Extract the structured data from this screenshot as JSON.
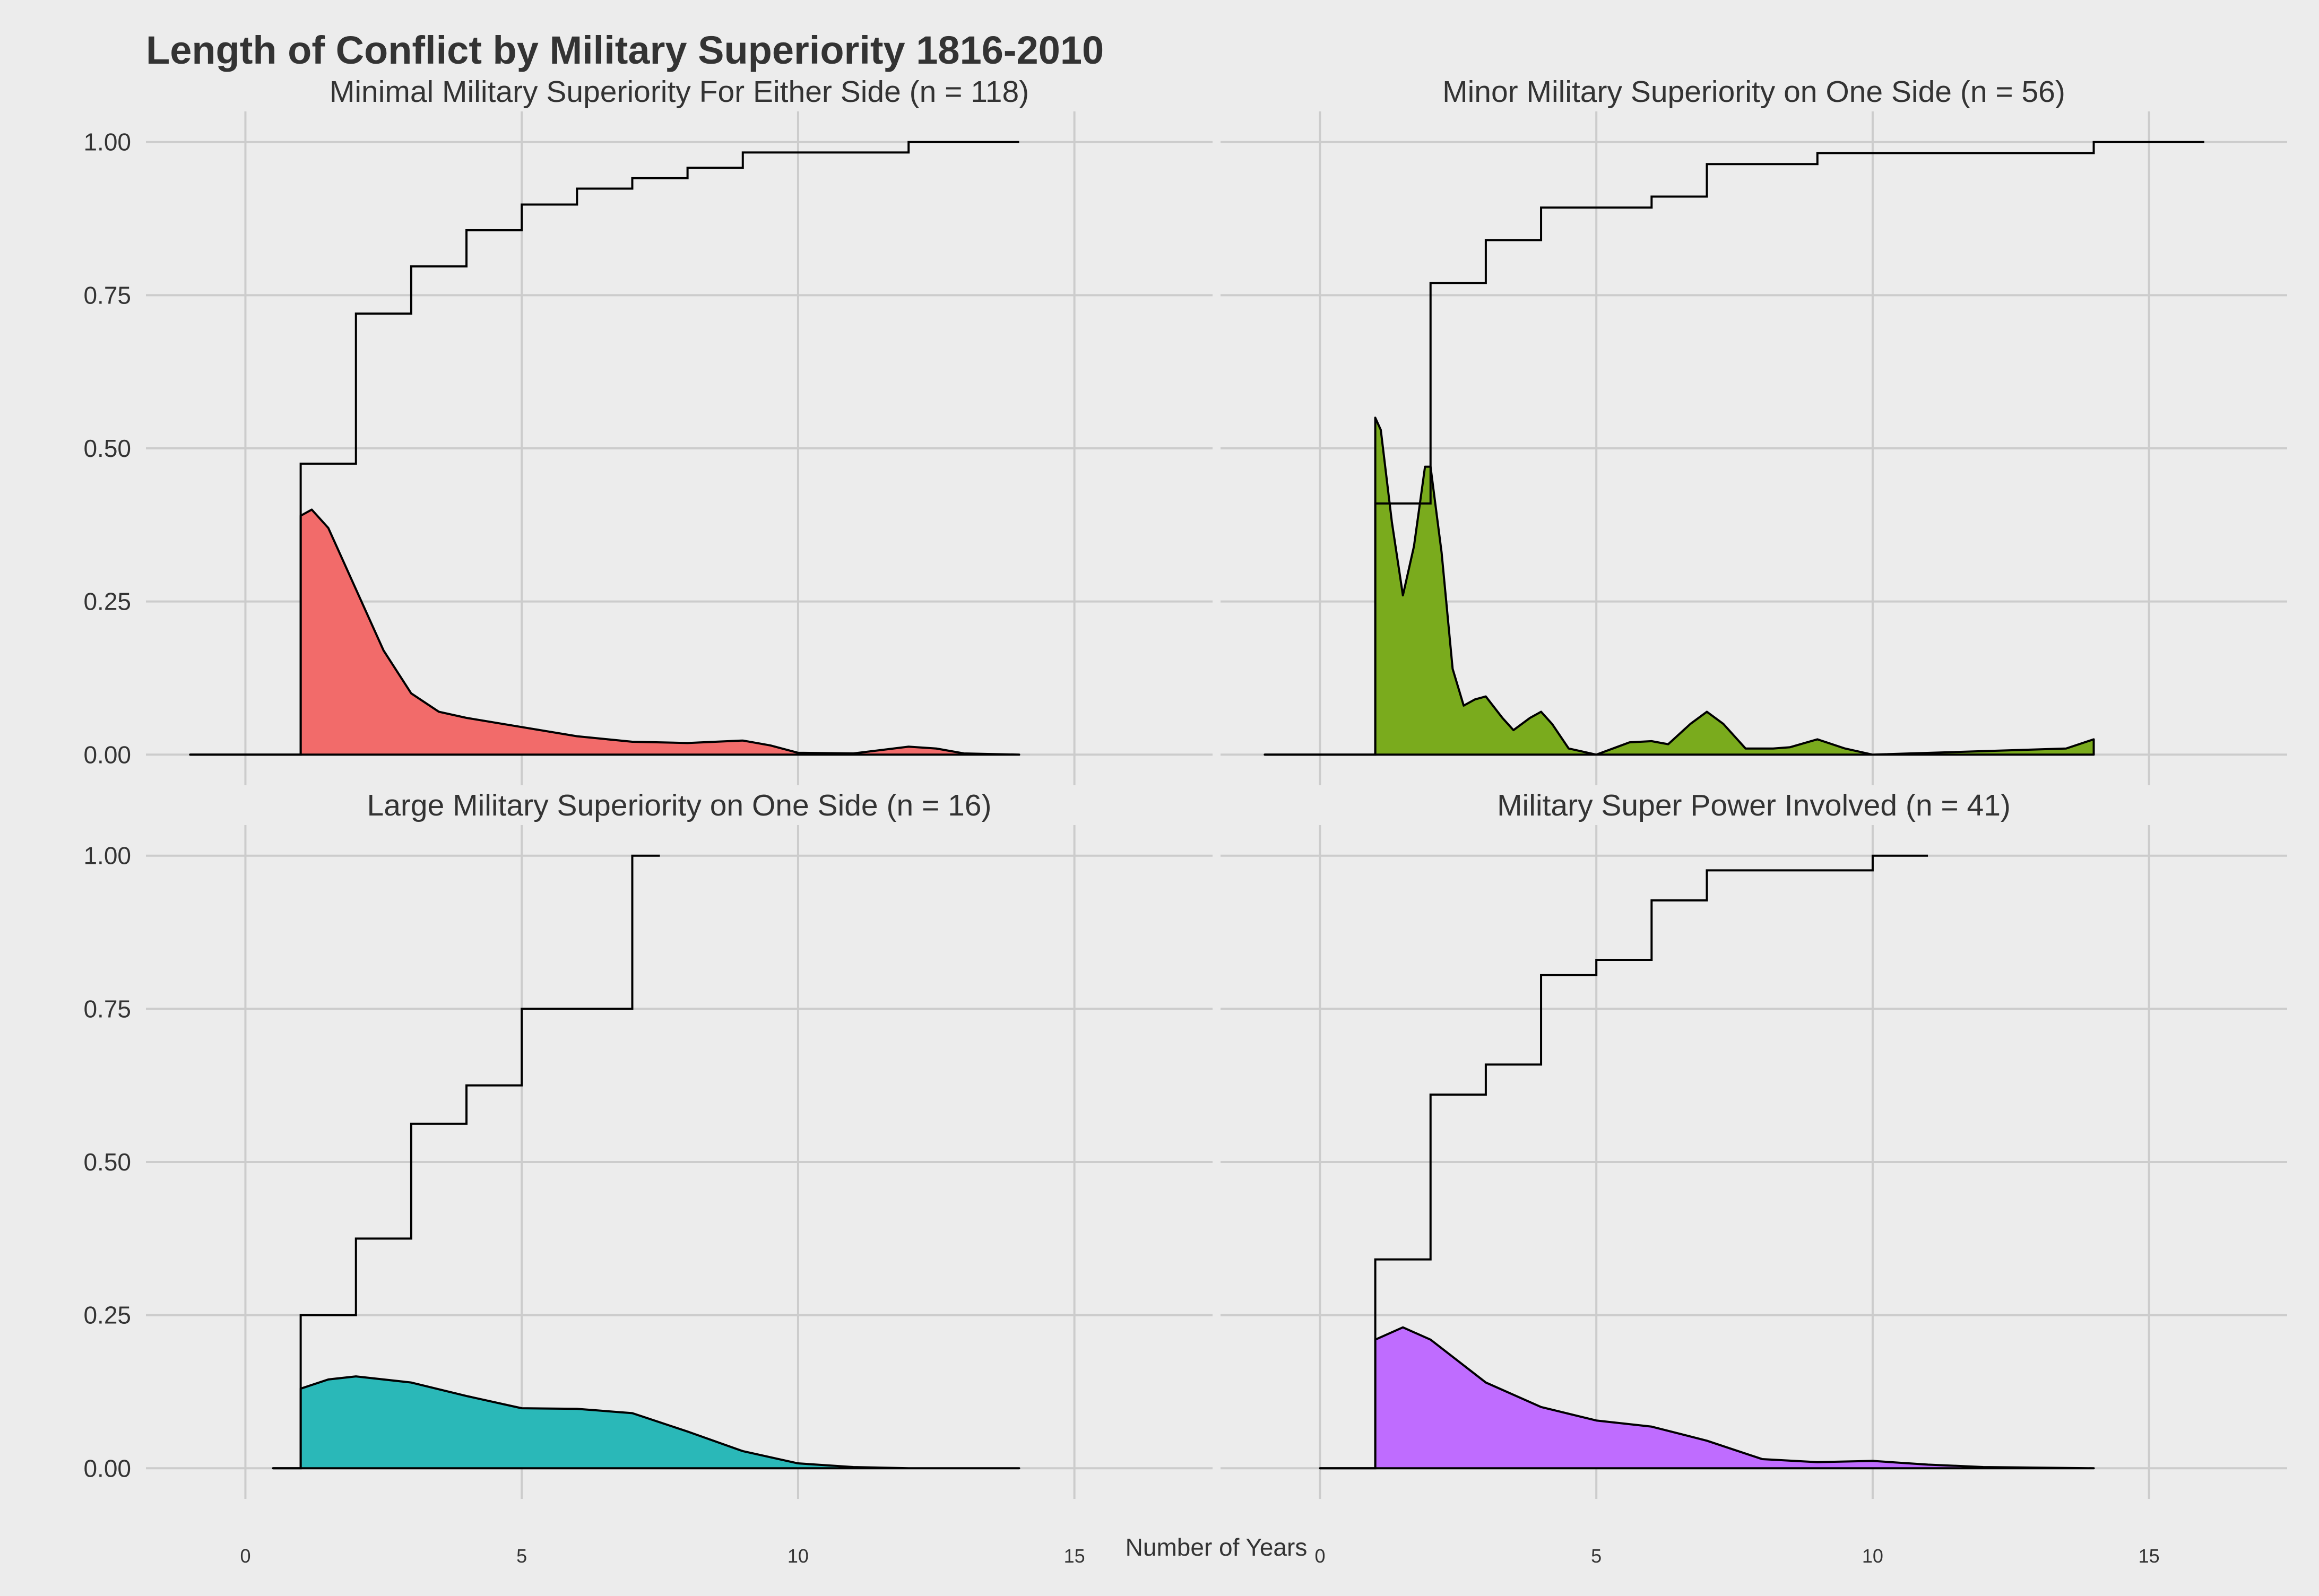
{
  "chart_data": {
    "type": "area",
    "title": "Length of Conflict by Military Superiority 1816-2010",
    "xlabel": "Number of Years",
    "ylabel": "",
    "xlim": [
      -1.8,
      17.5
    ],
    "ylim": [
      -0.05,
      1.05
    ],
    "x_ticks": [
      0,
      5,
      10,
      15
    ],
    "x_tick_labels": [
      "0",
      "5",
      "10",
      "15"
    ],
    "y_ticks": [
      0,
      0.25,
      0.5,
      0.75,
      1.0
    ],
    "y_tick_labels": [
      "0.00",
      "0.25",
      "0.50",
      "0.75",
      "1.00"
    ],
    "grid": true,
    "legend": "none",
    "panels": [
      {
        "title": "Minimal Military Superiority For Either Side (n = 118)",
        "fill_color": "#f26b6a",
        "ecdf": [
          [
            -1,
            0
          ],
          [
            1,
            0.475
          ],
          [
            2,
            0.72
          ],
          [
            3,
            0.797
          ],
          [
            4,
            0.856
          ],
          [
            5,
            0.898
          ],
          [
            6,
            0.924
          ],
          [
            7,
            0.941
          ],
          [
            8,
            0.958
          ],
          [
            9,
            0.983
          ],
          [
            12,
            1.0
          ],
          [
            14,
            1.0
          ]
        ],
        "density": [
          [
            -1,
            0
          ],
          [
            1,
            0
          ],
          [
            1,
            0.39
          ],
          [
            1.2,
            0.4
          ],
          [
            1.5,
            0.37
          ],
          [
            2,
            0.27
          ],
          [
            2.5,
            0.17
          ],
          [
            3,
            0.1
          ],
          [
            3.5,
            0.07
          ],
          [
            4,
            0.06
          ],
          [
            5,
            0.045
          ],
          [
            6,
            0.03
          ],
          [
            7,
            0.021
          ],
          [
            8,
            0.019
          ],
          [
            9,
            0.023
          ],
          [
            9.5,
            0.015
          ],
          [
            10,
            0.003
          ],
          [
            11,
            0.002
          ],
          [
            12,
            0.013
          ],
          [
            12.5,
            0.01
          ],
          [
            13,
            0.002
          ],
          [
            14,
            0
          ]
        ]
      },
      {
        "title": "Minor Military Superiority on One Side (n = 56)",
        "fill_color": "#7aab1d",
        "ecdf": [
          [
            -1,
            0
          ],
          [
            1,
            0.41
          ],
          [
            2,
            0.77
          ],
          [
            3,
            0.84
          ],
          [
            4,
            0.893
          ],
          [
            6,
            0.911
          ],
          [
            7,
            0.964
          ],
          [
            9,
            0.982
          ],
          [
            14,
            1.0
          ],
          [
            16,
            1.0
          ]
        ],
        "density": [
          [
            -1,
            0
          ],
          [
            1,
            0
          ],
          [
            1,
            0.55
          ],
          [
            1.1,
            0.53
          ],
          [
            1.3,
            0.38
          ],
          [
            1.5,
            0.26
          ],
          [
            1.7,
            0.34
          ],
          [
            1.9,
            0.47
          ],
          [
            2.0,
            0.47
          ],
          [
            2.2,
            0.33
          ],
          [
            2.4,
            0.14
          ],
          [
            2.6,
            0.08
          ],
          [
            2.8,
            0.09
          ],
          [
            3.0,
            0.095
          ],
          [
            3.3,
            0.06
          ],
          [
            3.5,
            0.04
          ],
          [
            3.8,
            0.06
          ],
          [
            4.0,
            0.07
          ],
          [
            4.2,
            0.05
          ],
          [
            4.5,
            0.01
          ],
          [
            5,
            0
          ],
          [
            5.6,
            0.02
          ],
          [
            6.0,
            0.022
          ],
          [
            6.3,
            0.017
          ],
          [
            6.7,
            0.05
          ],
          [
            7.0,
            0.07
          ],
          [
            7.3,
            0.05
          ],
          [
            7.7,
            0.01
          ],
          [
            8.2,
            0.01
          ],
          [
            8.5,
            0.012
          ],
          [
            9.0,
            0.025
          ],
          [
            9.5,
            0.01
          ],
          [
            10,
            0
          ],
          [
            13.5,
            0.01
          ],
          [
            14,
            0.025
          ],
          [
            14,
            0
          ]
        ]
      },
      {
        "title": "Large Military Superiority on One Side (n = 16)",
        "fill_color": "#2ab8b8",
        "ecdf": [
          [
            0.5,
            0
          ],
          [
            1,
            0.25
          ],
          [
            2,
            0.375
          ],
          [
            3,
            0.5625
          ],
          [
            4,
            0.625
          ],
          [
            5,
            0.75
          ],
          [
            7,
            1.0
          ],
          [
            7.5,
            1.0
          ]
        ],
        "density": [
          [
            0.5,
            0
          ],
          [
            1,
            0
          ],
          [
            1,
            0.13
          ],
          [
            1.5,
            0.145
          ],
          [
            2,
            0.15
          ],
          [
            3,
            0.14
          ],
          [
            4,
            0.118
          ],
          [
            5,
            0.098
          ],
          [
            6,
            0.097
          ],
          [
            7,
            0.09
          ],
          [
            8,
            0.06
          ],
          [
            9,
            0.028
          ],
          [
            10,
            0.008
          ],
          [
            11,
            0.002
          ],
          [
            12,
            0
          ],
          [
            14,
            0
          ]
        ]
      },
      {
        "title": "Military Super Power Involved (n = 41)",
        "fill_color": "#bf6cff",
        "ecdf": [
          [
            0,
            0
          ],
          [
            1,
            0.341
          ],
          [
            2,
            0.61
          ],
          [
            3,
            0.659
          ],
          [
            4,
            0.805
          ],
          [
            5,
            0.83
          ],
          [
            6,
            0.927
          ],
          [
            7,
            0.976
          ],
          [
            10,
            1.0
          ],
          [
            11,
            1.0
          ]
        ],
        "density": [
          [
            0,
            0
          ],
          [
            1,
            0
          ],
          [
            1,
            0.21
          ],
          [
            1.5,
            0.23
          ],
          [
            2,
            0.21
          ],
          [
            3,
            0.14
          ],
          [
            4,
            0.1
          ],
          [
            5,
            0.078
          ],
          [
            6,
            0.068
          ],
          [
            7,
            0.045
          ],
          [
            8,
            0.015
          ],
          [
            9,
            0.01
          ],
          [
            10,
            0.012
          ],
          [
            11,
            0.006
          ],
          [
            12,
            0.002
          ],
          [
            14,
            0
          ]
        ]
      }
    ]
  }
}
